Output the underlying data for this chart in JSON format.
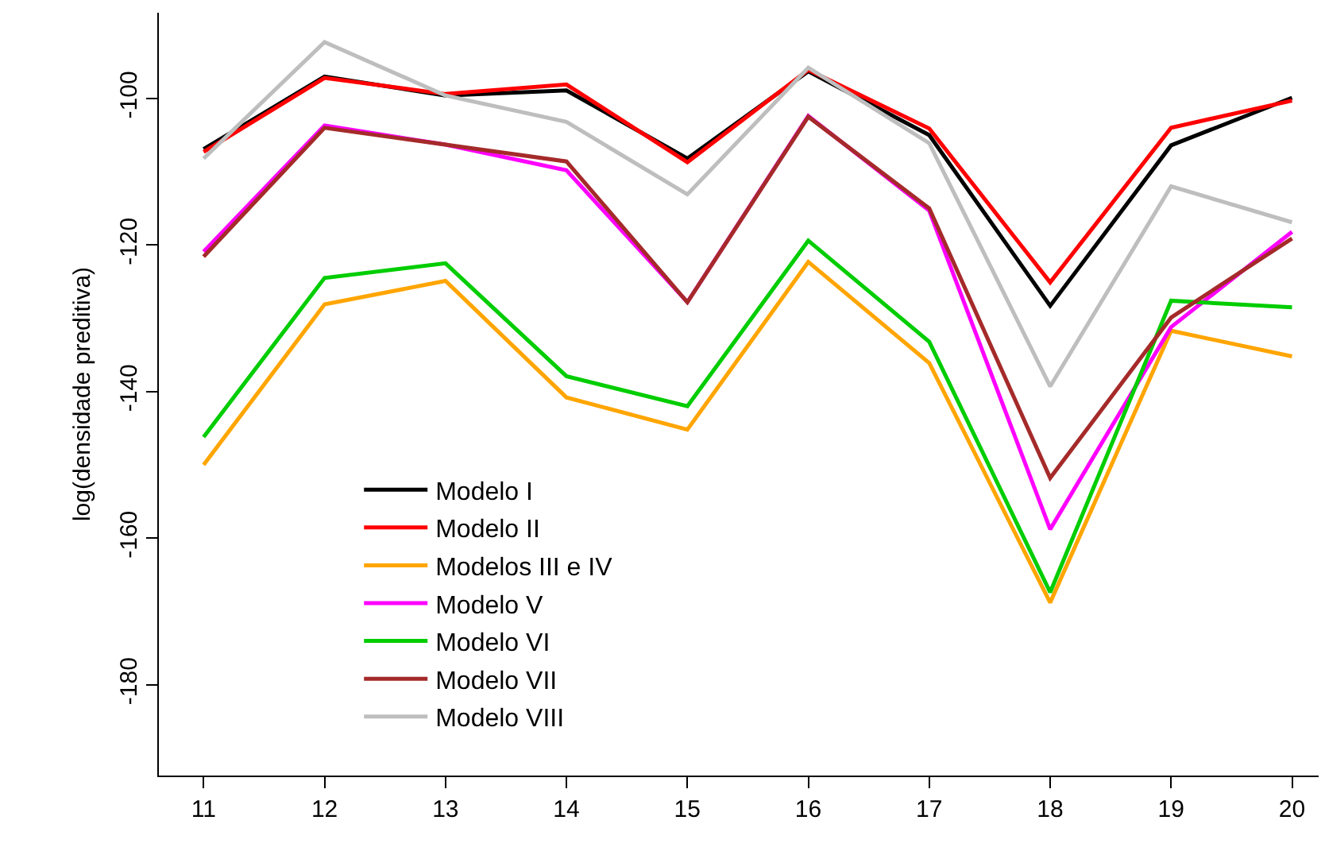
{
  "chart_data": {
    "type": "line",
    "ylabel": "log(densidade preditiva)",
    "x": [
      11,
      12,
      13,
      14,
      15,
      16,
      17,
      18,
      19,
      20
    ],
    "xlim": [
      10.63,
      20.22
    ],
    "xticks": [
      11,
      12,
      13,
      14,
      15,
      16,
      17,
      18,
      19,
      20
    ],
    "ylim": [
      -192.4,
      -88.3
    ],
    "yticks": [
      -180,
      -160,
      -140,
      -120,
      -100
    ],
    "grid": false,
    "legend": "bottom left",
    "marker": "none",
    "line_style": "solid",
    "series": [
      {
        "name": "Modelo I",
        "color": "#000000",
        "values": [
          -106.9,
          -97.0,
          -99.6,
          -98.9,
          -108.2,
          -96.3,
          -105.0,
          -128.3,
          -106.4,
          -99.9
        ]
      },
      {
        "name": "Modelo II",
        "color": "#ff0000",
        "values": [
          -107.3,
          -97.2,
          -99.4,
          -98.1,
          -108.7,
          -96.1,
          -104.1,
          -125.1,
          -104.0,
          -100.3
        ]
      },
      {
        "name": "Modelos III e IV",
        "color": "#ffa500",
        "values": [
          -150.0,
          -128.1,
          -124.9,
          -140.8,
          -145.2,
          -122.3,
          -136.1,
          -168.8,
          -131.7,
          -135.2
        ]
      },
      {
        "name": "Modelo V",
        "color": "#ff00ff",
        "values": [
          -120.9,
          -103.7,
          -106.3,
          -109.8,
          -127.8,
          -102.4,
          -115.3,
          -158.8,
          -131.2,
          -118.2
        ]
      },
      {
        "name": "Modelo VI",
        "color": "#00cd00",
        "values": [
          -146.2,
          -124.5,
          -122.5,
          -137.9,
          -142.0,
          -119.4,
          -133.2,
          -167.4,
          -127.6,
          -128.5
        ]
      },
      {
        "name": "Modelo VII",
        "color": "#a52a2a",
        "values": [
          -121.6,
          -104.0,
          -106.3,
          -108.6,
          -127.8,
          -102.5,
          -115.0,
          -151.8,
          -129.9,
          -119.1
        ]
      },
      {
        "name": "Modelo VIII",
        "color": "#bebebe",
        "values": [
          -108.2,
          -92.3,
          -99.6,
          -103.2,
          -113.1,
          -95.8,
          -106.1,
          -139.3,
          -112.0,
          -116.9
        ]
      }
    ]
  }
}
